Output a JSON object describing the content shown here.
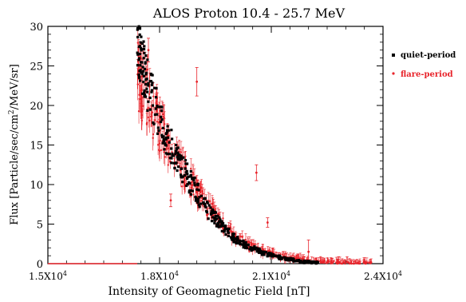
{
  "chart_data": {
    "type": "scatter",
    "title": "ALOS Proton 10.4 - 25.7 MeV",
    "xlabel": "Intensity of Geomagnetic Field [nT]",
    "ylabel_parts": {
      "pre": "Flux [Particle/sec/cm",
      "sup": "2",
      "post": "/MeV/sr]"
    },
    "xlim": [
      15000,
      24000
    ],
    "ylim": [
      0,
      30
    ],
    "x_ticks": [
      {
        "value": 15000,
        "base": "1.5X10",
        "exp": "4"
      },
      {
        "value": 18000,
        "base": "1.8X10",
        "exp": "4"
      },
      {
        "value": 21000,
        "base": "2.1X10",
        "exp": "4"
      },
      {
        "value": 24000,
        "base": "2.4X10",
        "exp": "4"
      }
    ],
    "y_ticks": [
      "0",
      "5",
      "10",
      "15",
      "20",
      "25",
      "30"
    ],
    "grid": false,
    "legend_position": "outside-right-top",
    "series": [
      {
        "name": "quiet-period",
        "color": "#000000",
        "marker": "filled-square",
        "error_bars": false,
        "envelope": {
          "x": [
            17400,
            17500,
            17700,
            18000,
            18400,
            18800,
            19200,
            19600,
            20000,
            20400,
            20800,
            21300,
            21800,
            22300
          ],
          "y": [
            27,
            25.5,
            22.5,
            18,
            14,
            10.5,
            7.5,
            5,
            3.2,
            2.1,
            1.3,
            0.7,
            0.3,
            0.1
          ]
        }
      },
      {
        "name": "flare-period",
        "color": "#e8242b",
        "marker": "small-dot",
        "error_bars": true,
        "envelope": {
          "x": [
            17400,
            17500,
            17700,
            18000,
            18400,
            18800,
            19200,
            19600,
            20000,
            20400,
            20800,
            21300,
            21800,
            22300,
            22800,
            23300,
            23700
          ],
          "y": [
            24,
            22.5,
            20.5,
            17,
            13.5,
            10.5,
            7.8,
            5.3,
            3.5,
            2.3,
            1.5,
            0.9,
            0.5,
            0.25,
            0.12,
            0.06,
            0.03
          ]
        },
        "baseline": {
          "x": [
            15000,
            17400
          ],
          "y": [
            0,
            0
          ]
        },
        "outliers": [
          {
            "x": 17700,
            "y": 27,
            "err": 1.5
          },
          {
            "x": 19000,
            "y": 23,
            "err": 1.8
          },
          {
            "x": 18300,
            "y": 8,
            "err": 0.8
          },
          {
            "x": 20600,
            "y": 11.5,
            "err": 1.0
          },
          {
            "x": 22000,
            "y": 1.5,
            "err": 1.5
          },
          {
            "x": 20900,
            "y": 5.2,
            "err": 0.6
          }
        ]
      }
    ]
  }
}
